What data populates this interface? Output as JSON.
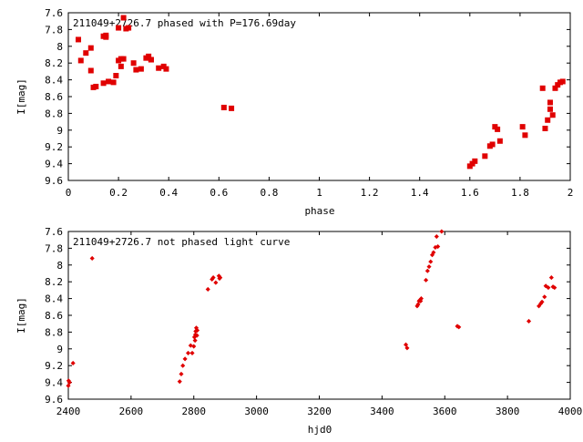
{
  "chart_data": [
    {
      "type": "scatter",
      "title": "211049+2726.7 phased with P=176.69day",
      "xlabel": "phase",
      "ylabel": "I[mag]",
      "xlim": [
        0,
        2
      ],
      "ylim": [
        9.6,
        7.6
      ],
      "y_inverted": true,
      "xticks": [
        "0",
        "0.2",
        "0.4",
        "0.6",
        "0.8",
        "1",
        "1.2",
        "1.4",
        "1.6",
        "1.8",
        "2"
      ],
      "yticks": [
        "7.6",
        "7.8",
        "8",
        "8.2",
        "8.4",
        "8.6",
        "8.8",
        "9",
        "9.2",
        "9.4",
        "9.6"
      ],
      "marker_color": "#e00000",
      "grid": false,
      "x": [
        0.04,
        0.05,
        0.07,
        0.09,
        0.09,
        0.1,
        0.11,
        0.14,
        0.14,
        0.15,
        0.15,
        0.16,
        0.18,
        0.19,
        0.2,
        0.2,
        0.21,
        0.21,
        0.22,
        0.22,
        0.23,
        0.24,
        0.26,
        0.27,
        0.29,
        0.31,
        0.32,
        0.33,
        0.33,
        0.36,
        0.38,
        0.39,
        0.62,
        0.65,
        1.6,
        1.61,
        1.62,
        1.66,
        1.68,
        1.69,
        1.7,
        1.71,
        1.72,
        1.81,
        1.82,
        1.89,
        1.9,
        1.91,
        1.92,
        1.92,
        1.93,
        1.94,
        1.95,
        1.96,
        1.97
      ],
      "y": [
        7.92,
        8.17,
        8.08,
        8.02,
        8.29,
        8.49,
        8.48,
        7.88,
        8.44,
        7.87,
        7.89,
        8.42,
        8.43,
        8.35,
        8.17,
        7.78,
        8.15,
        8.24,
        8.15,
        7.66,
        7.79,
        7.78,
        8.2,
        8.28,
        8.27,
        8.14,
        8.12,
        8.16,
        8.16,
        8.26,
        8.24,
        8.27,
        8.73,
        8.74,
        9.43,
        9.4,
        9.37,
        9.31,
        9.19,
        9.17,
        8.96,
        8.99,
        9.13,
        8.96,
        9.06,
        8.5,
        8.98,
        8.88,
        8.75,
        8.67,
        8.82,
        8.5,
        8.46,
        8.43,
        8.42
      ]
    },
    {
      "type": "scatter",
      "title": "211049+2726.7 not phased light curve",
      "xlabel": "hjd0",
      "ylabel": "I[mag]",
      "xlim": [
        2400,
        4000
      ],
      "ylim": [
        9.6,
        7.6
      ],
      "y_inverted": true,
      "xticks": [
        "2400",
        "2600",
        "2800",
        "3000",
        "3200",
        "3400",
        "3600",
        "3800",
        "4000"
      ],
      "yticks": [
        "7.6",
        "7.8",
        "8",
        "8.2",
        "8.4",
        "8.6",
        "8.8",
        "9",
        "9.2",
        "9.4",
        "9.6"
      ],
      "marker_color": "#e00000",
      "grid": false,
      "x": [
        2400,
        2401,
        2404,
        2415,
        2476,
        2755,
        2760,
        2765,
        2772,
        2782,
        2790,
        2795,
        2800,
        2802,
        2804,
        2805,
        2806,
        2808,
        2810,
        2811,
        2845,
        2858,
        2862,
        2870,
        2880,
        2882,
        2884,
        3476,
        3480,
        3512,
        3515,
        3518,
        3520,
        3523,
        3525,
        3540,
        3545,
        3550,
        3555,
        3560,
        3564,
        3570,
        3574,
        3578,
        3590,
        3640,
        3645,
        3868,
        3900,
        3906,
        3910,
        3918,
        3922,
        3930,
        3940,
        3945,
        3950
      ],
      "y": [
        9.44,
        9.38,
        9.4,
        9.17,
        7.92,
        9.39,
        9.3,
        9.2,
        9.12,
        9.05,
        8.96,
        9.05,
        8.97,
        8.86,
        8.9,
        8.83,
        8.79,
        8.75,
        8.84,
        8.78,
        8.29,
        8.17,
        8.15,
        8.21,
        8.13,
        8.16,
        8.15,
        8.95,
        8.99,
        8.49,
        8.47,
        8.43,
        8.42,
        8.43,
        8.4,
        8.18,
        8.07,
        8.02,
        7.96,
        7.88,
        7.85,
        7.79,
        7.66,
        7.78,
        7.6,
        8.73,
        8.74,
        8.67,
        8.49,
        8.46,
        8.44,
        8.38,
        8.25,
        8.27,
        8.15,
        8.26,
        8.27
      ]
    }
  ]
}
